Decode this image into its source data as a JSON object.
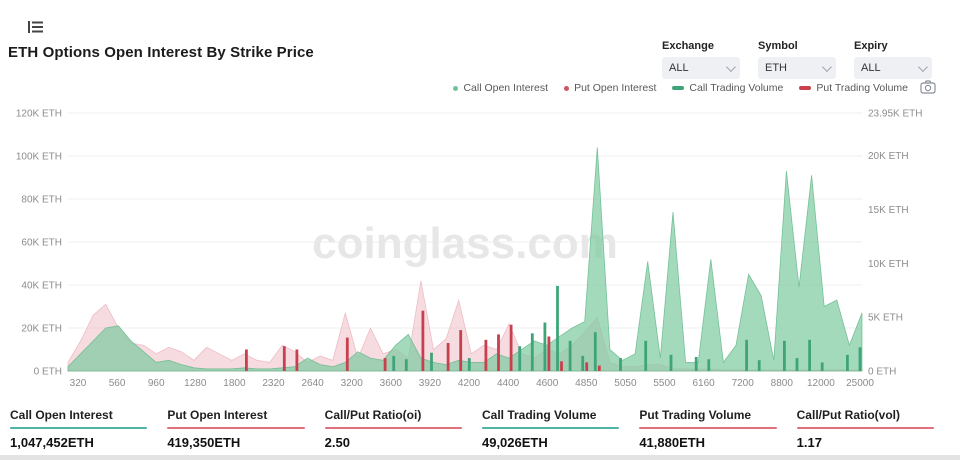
{
  "header": {
    "title": "ETH Options Open Interest By Strike Price",
    "filters": [
      {
        "label": "Exchange",
        "value": "ALL"
      },
      {
        "label": "Symbol",
        "value": "ETH"
      },
      {
        "label": "Expiry",
        "value": "ALL"
      }
    ]
  },
  "legend": {
    "items": [
      {
        "label": "Call Open Interest",
        "shape": "dot",
        "color": "#6ec49a"
      },
      {
        "label": "Put  Open Interest",
        "shape": "dot",
        "color": "#cf5560"
      },
      {
        "label": "Call Trading Volume",
        "shape": "dash",
        "color": "#3fa578"
      },
      {
        "label": "Put  Trading Volume",
        "shape": "dash",
        "color": "#c8404e"
      }
    ]
  },
  "watermark": "coinglass.com",
  "chart_data": {
    "type": "area",
    "title": "ETH Options Open Interest By Strike Price",
    "units": "K ETH",
    "grid": true,
    "left_axis": {
      "max": 120,
      "tick_labels": [
        "0 ETH",
        "20K ETH",
        "40K ETH",
        "60K ETH",
        "80K ETH",
        "100K ETH",
        "120K ETH"
      ],
      "tick_values": [
        0,
        20,
        40,
        60,
        80,
        100,
        120
      ]
    },
    "right_axis": {
      "max": 23.95,
      "tick_labels": [
        "0 ETH",
        "5K ETH",
        "10K ETH",
        "15K ETH",
        "20K ETH",
        "23.95K ETH"
      ],
      "tick_values": [
        0,
        5,
        10,
        15,
        20,
        23.95
      ]
    },
    "x_tick_labels": [
      "320",
      "560",
      "960",
      "1280",
      "1800",
      "2320",
      "2640",
      "3200",
      "3600",
      "3920",
      "4200",
      "4400",
      "4600",
      "4850",
      "5050",
      "5500",
      "6160",
      "7200",
      "8800",
      "12000",
      "25000"
    ],
    "series": [
      {
        "name": "Put Open Interest",
        "kind": "area",
        "axis": "left",
        "fill": "rgba(239,190,198,0.55)",
        "stroke": "rgba(230,160,170,0.6)",
        "values": [
          4,
          14,
          26,
          31,
          20,
          13,
          12,
          8,
          11,
          9,
          5,
          11,
          8,
          5,
          8,
          5,
          4,
          12,
          9,
          4,
          7,
          5,
          27,
          6,
          20,
          8,
          10,
          6,
          42,
          10,
          15,
          33,
          8,
          12,
          10,
          22,
          8,
          6,
          10,
          8,
          12,
          18,
          25,
          4,
          2,
          2,
          3,
          3,
          1,
          1,
          1,
          1,
          0.5,
          0.5,
          0.5,
          0.5,
          0.5,
          0.5,
          0.5,
          0.5,
          0.5,
          0.5,
          0.5,
          0.5
        ]
      },
      {
        "name": "Call Open Interest",
        "kind": "area",
        "axis": "left",
        "fill": "rgba(126,203,160,0.7)",
        "stroke": "rgba(96,182,136,0.8)",
        "values": [
          2,
          8,
          14,
          20,
          21,
          14,
          9,
          4,
          5,
          3,
          1.5,
          1,
          1,
          1,
          1.5,
          1,
          1,
          1.5,
          2,
          6,
          3,
          2,
          4,
          9,
          6,
          5,
          12,
          17,
          6,
          4,
          3,
          5,
          4,
          4,
          8,
          6,
          10,
          14,
          12,
          16,
          20,
          23,
          104,
          10,
          5,
          8,
          51,
          6,
          74,
          4,
          4,
          52,
          4,
          12,
          45,
          35,
          5,
          93,
          39,
          91,
          30,
          33,
          12,
          27
        ]
      },
      {
        "name": "Call Trading Volume",
        "kind": "bar",
        "axis": "right",
        "fill": "#3fa578",
        "values": [
          0,
          0,
          0,
          0,
          0,
          0,
          0,
          0,
          0,
          0,
          0,
          0,
          0,
          0,
          0,
          0,
          0,
          0,
          0,
          0,
          0,
          0,
          0,
          0,
          0,
          0,
          1.4,
          1.1,
          0,
          1.7,
          0,
          0,
          1.2,
          0,
          0,
          0,
          2.3,
          3.5,
          4.5,
          7.9,
          2.8,
          1.4,
          3.6,
          0,
          1.2,
          0,
          2.8,
          0,
          1.5,
          0,
          1.3,
          1.1,
          0,
          0,
          2.9,
          1.0,
          0,
          2.8,
          1.2,
          2.9,
          0.8,
          0,
          1.5,
          2.2
        ]
      },
      {
        "name": "Put Trading Volume",
        "kind": "bar",
        "axis": "right",
        "fill": "#c8404e",
        "values": [
          0,
          0,
          0,
          0,
          0,
          0,
          0,
          0,
          0,
          0,
          0,
          0,
          0,
          0,
          2.0,
          0,
          0,
          2.3,
          2.0,
          0,
          0,
          0,
          3.1,
          0,
          0,
          1.2,
          0,
          0,
          5.6,
          0,
          2.6,
          3.8,
          0,
          2.9,
          3.4,
          4.3,
          0,
          0,
          3.2,
          0.9,
          0,
          0.8,
          0.5,
          0,
          0,
          0,
          0,
          0,
          0,
          0,
          0,
          0,
          0,
          0,
          0,
          0,
          0,
          0,
          0,
          0,
          0,
          0,
          0,
          0
        ]
      }
    ],
    "legend_position": "top-right"
  },
  "stats": [
    {
      "label": "Call Open Interest",
      "value": "1,047,452ETH",
      "rule_color": "#4fb3a5"
    },
    {
      "label": "Put Open Interest",
      "value": "419,350ETH",
      "rule_color": "#e0717b"
    },
    {
      "label": "Call/Put Ratio(oi)",
      "value": "2.50",
      "rule_color": "#e0717b"
    },
    {
      "label": "Call Trading Volume",
      "value": "49,026ETH",
      "rule_color": "#4fb3a5"
    },
    {
      "label": "Put Trading Volume",
      "value": "41,880ETH",
      "rule_color": "#e0717b"
    },
    {
      "label": "Call/Put Ratio(vol)",
      "value": "1.17",
      "rule_color": "#e0717b"
    }
  ]
}
